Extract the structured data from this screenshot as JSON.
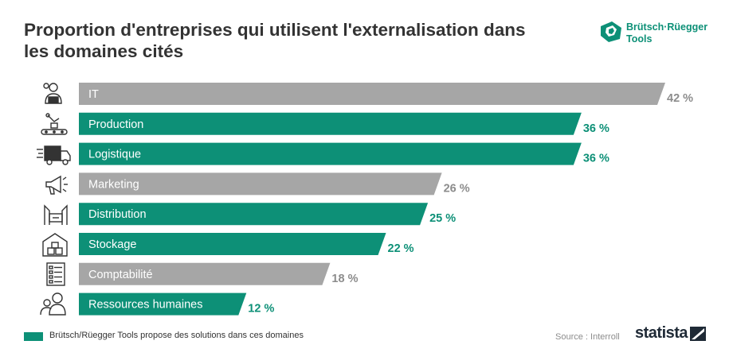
{
  "title": "Proportion d'entreprises qui utilisent l'externalisation dans les domaines cités",
  "brand": {
    "name": "Brütsch·Rüegger Tools",
    "icon": "brutsch-rueegger-logo-icon",
    "color": "#0d9077"
  },
  "colors": {
    "highlight": "#0d9077",
    "other": "#a6a6a6",
    "other_text": "#8c8c8c"
  },
  "chart_data": {
    "type": "bar",
    "orientation": "horizontal",
    "categories": [
      "IT",
      "Production",
      "Logistique",
      "Marketing",
      "Distribution",
      "Stockage",
      "Comptabilité",
      "Ressources humaines"
    ],
    "values": [
      42,
      36,
      36,
      26,
      25,
      22,
      18,
      12
    ],
    "value_labels": [
      "42 %",
      "36 %",
      "36 %",
      "26 %",
      "25 %",
      "22 %",
      "18 %",
      "12 %"
    ],
    "highlighted": [
      false,
      true,
      true,
      false,
      true,
      true,
      false,
      true
    ],
    "icons": [
      "person-laptop-icon",
      "factory-robot-icon",
      "delivery-truck-icon",
      "megaphone-icon",
      "distribution-shelf-icon",
      "warehouse-boxes-icon",
      "ledger-list-icon",
      "people-icon"
    ],
    "xlim": [
      0,
      42
    ],
    "grid": false,
    "title": "Proportion d'entreprises qui utilisent l'externalisation dans les domaines cités"
  },
  "legend": {
    "text": "Brütsch/Rüegger Tools propose des solutions dans ces domaines"
  },
  "source": "Source : Interroll",
  "statista": "statista"
}
